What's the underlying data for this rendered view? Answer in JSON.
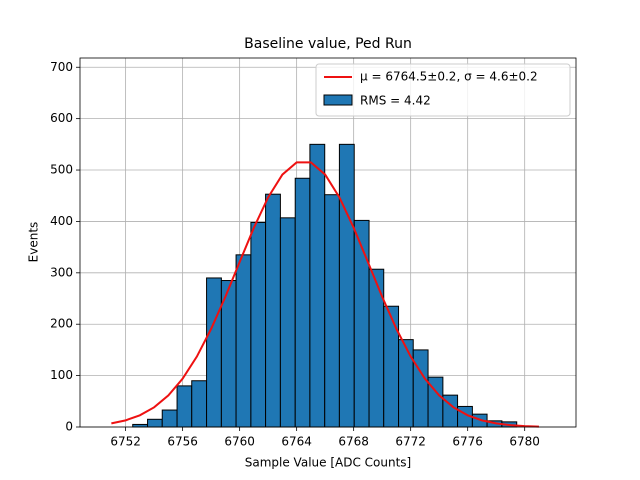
{
  "chart_data": {
    "type": "histogram",
    "title": "Baseline value, Ped Run",
    "xlabel": "Sample Value [ADC Counts]",
    "ylabel": "Events",
    "bins": [
      6752.5,
      6753.54,
      6754.57,
      6755.61,
      6756.64,
      6757.68,
      6758.72,
      6759.75,
      6760.79,
      6761.82,
      6762.86,
      6763.9,
      6764.93,
      6765.97,
      6767.0,
      6768.04,
      6769.08,
      6770.11,
      6771.15,
      6772.18,
      6773.22,
      6774.26,
      6775.29,
      6776.33,
      6777.36,
      6778.4,
      6779.44
    ],
    "counts": [
      5,
      15,
      33,
      80,
      90,
      290,
      285,
      335,
      398,
      453,
      407,
      484,
      550,
      452,
      550,
      402,
      307,
      235,
      170,
      150,
      97,
      62,
      40,
      25,
      12,
      10
    ],
    "name": "RMS = 4.42",
    "color": "#1f77b4",
    "edgecolor": "#000000",
    "curve": {
      "name": "μ = 6764.5±0.2, σ = 4.6±0.2",
      "color": "#ee1111",
      "x": [
        6751,
        6752,
        6753,
        6754,
        6755,
        6756,
        6757,
        6758,
        6759,
        6760,
        6761,
        6762,
        6763,
        6764,
        6765,
        6766,
        6767,
        6768,
        6769,
        6770,
        6771,
        6772,
        6773,
        6774,
        6775,
        6776,
        6777,
        6778,
        6779,
        6780,
        6781
      ],
      "values": [
        7.0,
        12.9,
        22.8,
        38.3,
        61.4,
        94.0,
        137.1,
        190.9,
        253.5,
        321.0,
        387.8,
        446.9,
        491.2,
        515.0,
        515.0,
        491.2,
        446.9,
        387.8,
        321.0,
        253.5,
        190.9,
        137.1,
        94.0,
        61.4,
        38.3,
        22.8,
        12.9,
        7.0,
        3.6,
        1.8,
        0.8
      ]
    },
    "xlim": [
      6748.8,
      6783.6
    ],
    "ylim": [
      0,
      718
    ],
    "xticks": [
      6752,
      6756,
      6760,
      6764,
      6768,
      6772,
      6776,
      6780
    ],
    "yticks": [
      0,
      100,
      200,
      300,
      400,
      500,
      600,
      700
    ],
    "grid": true,
    "legend": "upper right"
  }
}
